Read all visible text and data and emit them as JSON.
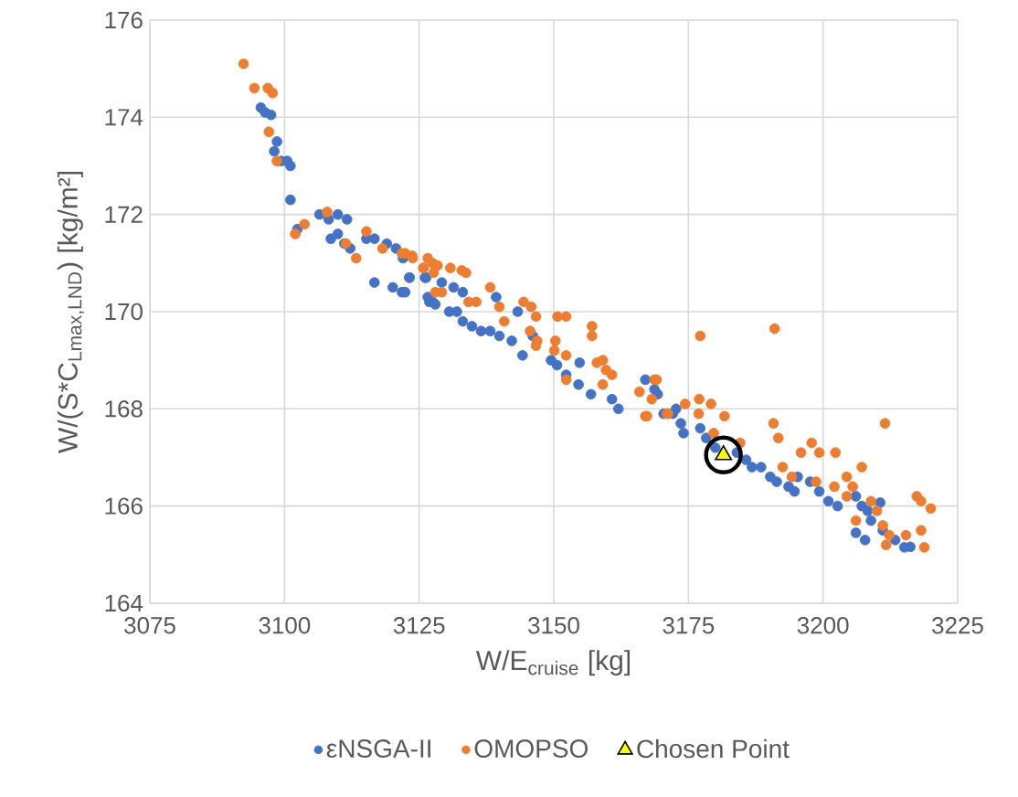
{
  "chart_data": {
    "type": "scatter",
    "xlabel": "W/E$_{cruise}$ [kg]",
    "ylabel": "W/(S*C$_{Lmax,LND}$) [kg/m²]",
    "xlim": [
      3075,
      3225
    ],
    "xticks": [
      3075,
      3100,
      3125,
      3150,
      3175,
      3200,
      3225
    ],
    "ylim": [
      164,
      176
    ],
    "yticks": [
      164,
      166,
      168,
      170,
      172,
      174,
      176
    ],
    "grid": true,
    "legend": "bottom",
    "series": [
      {
        "name": "εNSGA-II",
        "color": "#4472c4",
        "marker": "circle",
        "x": [
          3095.6,
          3096.4,
          3097.5,
          3098.6,
          3098.1,
          3099.4,
          3100.5,
          3101.1,
          3101.1,
          3102.4,
          3106.5,
          3108.2,
          3109.9,
          3111.6,
          3108.6,
          3109.9,
          3111.1,
          3112.2,
          3115.2,
          3116.7,
          3119.0,
          3120.7,
          3116.7,
          3120.1,
          3121.8,
          3123.2,
          3126.1,
          3126.6,
          3127.5,
          3122.0,
          3123.2,
          3122.4,
          3126.3,
          3126.9,
          3128.0,
          3129.2,
          3130.6,
          3132.0,
          3133.1,
          3134.8,
          3136.5,
          3138.2,
          3139.9,
          3142.2,
          3144.2,
          3131.4,
          3133.1,
          3139.3,
          3143.3,
          3146.1,
          3149.5,
          3150.6,
          3152.3,
          3154.6,
          3154.8,
          3156.9,
          3160.8,
          3162.0,
          3167.0,
          3169.3,
          3170.4,
          3172.7,
          3173.6,
          3174.1,
          3168.7,
          3172.1,
          3177.2,
          3178.3,
          3180.0,
          3184.0,
          3185.7,
          3186.8,
          3188.5,
          3190.2,
          3191.4,
          3193.6,
          3194.7,
          3195.3,
          3197.6,
          3199.3,
          3201.0,
          3202.7,
          3206.1,
          3207.2,
          3208.3,
          3210.6,
          3208.9,
          3206.1,
          3207.8,
          3211.1,
          3213.4,
          3215.1,
          3216.2
        ],
        "values": [
          174.2,
          174.1,
          174.05,
          173.5,
          173.3,
          173.1,
          173.1,
          173.0,
          172.3,
          171.7,
          172.0,
          171.9,
          172.0,
          171.9,
          171.5,
          171.6,
          171.4,
          171.3,
          171.5,
          171.5,
          171.4,
          171.3,
          170.6,
          170.5,
          170.4,
          170.7,
          170.7,
          170.3,
          170.2,
          171.1,
          170.7,
          170.4,
          170.7,
          170.2,
          170.15,
          170.6,
          170.0,
          170.0,
          169.8,
          169.7,
          169.6,
          169.6,
          169.5,
          169.4,
          169.1,
          170.5,
          170.4,
          170.3,
          170.0,
          169.5,
          169.0,
          168.9,
          168.7,
          168.5,
          168.95,
          168.3,
          168.2,
          168.0,
          168.6,
          168.3,
          167.9,
          168.0,
          167.7,
          167.5,
          168.4,
          167.9,
          167.6,
          167.4,
          167.2,
          167.1,
          166.95,
          166.8,
          166.8,
          166.6,
          166.5,
          166.4,
          166.3,
          166.6,
          166.5,
          166.3,
          166.1,
          166.0,
          166.2,
          166.0,
          165.9,
          166.07,
          165.7,
          165.45,
          165.3,
          165.5,
          165.3,
          165.15,
          165.16
        ]
      },
      {
        "name": "OMOPSO",
        "color": "#ed7d31",
        "marker": "circle",
        "x": [
          3092.4,
          3094.4,
          3096.9,
          3097.8,
          3097.1,
          3098.6,
          3102.0,
          3103.7,
          3107.9,
          3111.4,
          3113.3,
          3115.2,
          3118.2,
          3121.8,
          3123.7,
          3125.8,
          3127.5,
          3128.0,
          3122.4,
          3123.8,
          3126.6,
          3128.4,
          3125.8,
          3127.7,
          3130.8,
          3132.9,
          3133.7,
          3129.2,
          3134.2,
          3135.6,
          3138.2,
          3139.9,
          3140.8,
          3144.4,
          3145.8,
          3146.7,
          3145.6,
          3146.9,
          3146.7,
          3150.7,
          3152.3,
          3150.3,
          3150.1,
          3152.3,
          3157.1,
          3157.1,
          3158.0,
          3159.1,
          3159.7,
          3160.8,
          3152.3,
          3159.1,
          3165.9,
          3168.7,
          3168.2,
          3167.0,
          3171.2,
          3174.4,
          3177.2,
          3191.0,
          3169.1,
          3171.0,
          3167.3,
          3177.0,
          3179.2,
          3181.7,
          3176.9,
          3179.7,
          3184.6,
          3190.8,
          3191.7,
          3195.9,
          3197.9,
          3199.3,
          3202.3,
          3207.2,
          3211.5,
          3192.5,
          3194.2,
          3198.7,
          3202.1,
          3204.4,
          3205.5,
          3204.4,
          3208.9,
          3210.0,
          3206.1,
          3211.1,
          3212.3,
          3211.7,
          3215.4,
          3217.4,
          3218.2,
          3220.0,
          3218.2,
          3218.8
        ],
        "values": [
          175.1,
          174.6,
          174.6,
          174.5,
          173.7,
          173.1,
          171.6,
          171.8,
          172.05,
          171.4,
          171.1,
          171.65,
          171.3,
          171.2,
          171.15,
          170.9,
          171.0,
          170.4,
          171.2,
          171.1,
          171.1,
          170.95,
          170.9,
          170.8,
          170.9,
          170.85,
          170.8,
          170.4,
          170.2,
          170.2,
          170.5,
          170.1,
          169.8,
          170.2,
          170.1,
          169.9,
          169.6,
          169.4,
          169.3,
          169.9,
          169.9,
          169.4,
          169.2,
          169.1,
          169.7,
          169.5,
          168.95,
          169.0,
          168.8,
          168.7,
          168.6,
          168.5,
          168.35,
          168.6,
          168.2,
          167.85,
          167.9,
          168.1,
          169.5,
          169.65,
          168.6,
          167.9,
          167.85,
          168.2,
          168.1,
          167.85,
          167.9,
          167.5,
          167.3,
          167.7,
          167.4,
          167.1,
          167.3,
          167.1,
          167.1,
          166.8,
          167.7,
          166.8,
          166.6,
          166.5,
          166.4,
          166.6,
          166.4,
          166.2,
          166.1,
          165.9,
          165.7,
          165.6,
          165.4,
          165.2,
          165.4,
          166.2,
          166.1,
          165.95,
          165.5,
          165.15
        ]
      },
      {
        "name": "Chosen Point",
        "color": "#ffff00",
        "marker": "triangle",
        "x": [
          3181.5
        ],
        "values": [
          167.05
        ]
      }
    ]
  }
}
